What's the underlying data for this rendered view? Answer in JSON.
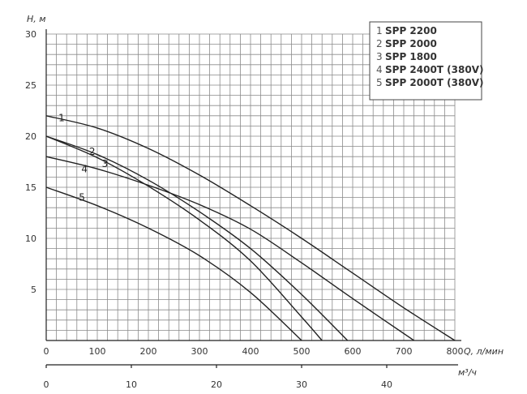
{
  "chart_data": {
    "type": "line",
    "title": "",
    "ylabel": "H, м",
    "xlabel": "Q, л/мин",
    "x2label": "м³/ч",
    "xlim": [
      0,
      800
    ],
    "ylim": [
      0,
      30
    ],
    "x2lim": [
      0,
      48
    ],
    "x_ticks": [
      "0",
      "100",
      "200",
      "300",
      "400",
      "500",
      "600",
      "700",
      "800"
    ],
    "x_tick_values": [
      0,
      100,
      200,
      300,
      400,
      500,
      600,
      700,
      800
    ],
    "y_ticks": [
      "5",
      "10",
      "15",
      "20",
      "25",
      "30"
    ],
    "y_tick_values": [
      5,
      10,
      15,
      20,
      25,
      30
    ],
    "x2_ticks": [
      "0",
      "10",
      "20",
      "30",
      "40"
    ],
    "x2_tick_values": [
      0,
      10,
      20,
      30,
      40
    ],
    "grid": true,
    "legend_position": "top-right",
    "legend": [
      {
        "num": "1",
        "name": "SPP 2200"
      },
      {
        "num": "2",
        "name": "SPP 2000"
      },
      {
        "num": "3",
        "name": "SPP 1800"
      },
      {
        "num": "4",
        "name": "SPP 2400T (380V)"
      },
      {
        "num": "5",
        "name": "SPP 2000T (380V)"
      }
    ],
    "series": [
      {
        "label": "1",
        "x": [
          0,
          100,
          200,
          300,
          400,
          500,
          600,
          700,
          800
        ],
        "y": [
          22,
          20.8,
          18.8,
          16.2,
          13.2,
          10,
          6.6,
          3.2,
          0
        ],
        "label_at": [
          30,
          21.8
        ]
      },
      {
        "label": "2",
        "x": [
          0,
          100,
          200,
          300,
          400,
          500,
          540
        ],
        "y": [
          20,
          17.9,
          15.1,
          11.8,
          7.8,
          2.3,
          0
        ],
        "label_at": [
          90,
          18.5
        ]
      },
      {
        "label": "3",
        "x": [
          0,
          100,
          200,
          300,
          400,
          500,
          590
        ],
        "y": [
          20,
          18.2,
          15.7,
          12.6,
          9.0,
          4.5,
          0
        ],
        "label_at": [
          115,
          17.3
        ]
      },
      {
        "label": "4",
        "x": [
          0,
          100,
          200,
          300,
          400,
          500,
          600,
          720
        ],
        "y": [
          18,
          16.8,
          15.2,
          13.3,
          10.9,
          7.6,
          4.1,
          0
        ],
        "label_at": [
          75,
          16.8
        ]
      },
      {
        "label": "5",
        "x": [
          0,
          100,
          200,
          300,
          400,
          500
        ],
        "y": [
          15,
          13.2,
          11.0,
          8.3,
          4.7,
          0
        ],
        "label_at": [
          70,
          14.0
        ]
      }
    ]
  }
}
